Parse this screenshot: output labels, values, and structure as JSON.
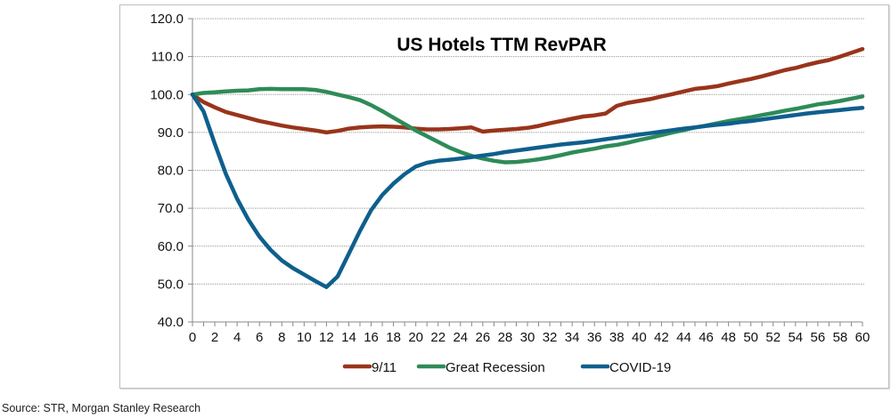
{
  "chart_data": {
    "type": "line",
    "title": "US Hotels TTM RevPAR",
    "xlabel": "",
    "ylabel": "",
    "ylim": [
      40,
      120
    ],
    "xlim": [
      0,
      60
    ],
    "y_ticks": [
      "40.0",
      "50.0",
      "60.0",
      "70.0",
      "80.0",
      "90.0",
      "100.0",
      "110.0",
      "120.0"
    ],
    "y_tick_values": [
      40,
      50,
      60,
      70,
      80,
      90,
      100,
      110,
      120
    ],
    "x_ticks": [
      "0",
      "2",
      "4",
      "6",
      "8",
      "10",
      "12",
      "14",
      "16",
      "18",
      "20",
      "22",
      "24",
      "26",
      "28",
      "30",
      "32",
      "34",
      "36",
      "38",
      "40",
      "42",
      "44",
      "46",
      "48",
      "50",
      "52",
      "54",
      "56",
      "58",
      "60"
    ],
    "grid": true,
    "legend_position": "bottom",
    "x": [
      0,
      1,
      2,
      3,
      4,
      5,
      6,
      7,
      8,
      9,
      10,
      11,
      12,
      13,
      14,
      15,
      16,
      17,
      18,
      19,
      20,
      21,
      22,
      23,
      24,
      25,
      26,
      27,
      28,
      29,
      30,
      31,
      32,
      33,
      34,
      35,
      36,
      37,
      38,
      39,
      40,
      41,
      42,
      43,
      44,
      45,
      46,
      47,
      48,
      49,
      50,
      51,
      52,
      53,
      54,
      55,
      56,
      57,
      58,
      59,
      60
    ],
    "series": [
      {
        "name": "9/11",
        "color": "#99341b",
        "values": [
          100.0,
          98.0,
          96.6,
          95.4,
          94.6,
          93.8,
          93.0,
          92.4,
          91.8,
          91.3,
          90.9,
          90.5,
          90.0,
          90.4,
          91.0,
          91.3,
          91.5,
          91.6,
          91.5,
          91.3,
          91.0,
          90.8,
          90.8,
          90.9,
          91.1,
          91.3,
          90.2,
          90.5,
          90.7,
          90.9,
          91.2,
          91.7,
          92.4,
          93.0,
          93.6,
          94.2,
          94.5,
          95.0,
          97.0,
          97.8,
          98.3,
          98.8,
          99.5,
          100.1,
          100.8,
          101.5,
          101.8,
          102.2,
          102.9,
          103.5,
          104.1,
          104.8,
          105.6,
          106.4,
          107.0,
          107.8,
          108.5,
          109.1,
          110.0,
          111.0,
          112.0
        ]
      },
      {
        "name": "Great Recession",
        "color": "#2e8b57",
        "values": [
          100.0,
          100.4,
          100.6,
          100.8,
          101.0,
          101.1,
          101.4,
          101.5,
          101.4,
          101.4,
          101.4,
          101.2,
          100.7,
          100.0,
          99.3,
          98.5,
          97.2,
          95.6,
          93.9,
          92.2,
          90.5,
          89.0,
          87.5,
          86.0,
          84.8,
          83.8,
          83.1,
          82.5,
          82.1,
          82.2,
          82.5,
          82.9,
          83.4,
          84.0,
          84.7,
          85.2,
          85.7,
          86.3,
          86.7,
          87.3,
          88.0,
          88.6,
          89.3,
          90.0,
          90.6,
          91.3,
          91.8,
          92.4,
          93.0,
          93.5,
          94.0,
          94.6,
          95.1,
          95.7,
          96.2,
          96.8,
          97.4,
          97.8,
          98.3,
          98.9,
          99.5
        ]
      },
      {
        "name": "COVID-19",
        "color": "#0e5f8d",
        "values": [
          100.0,
          95.5,
          87.0,
          79.0,
          72.5,
          67.0,
          62.5,
          59.0,
          56.2,
          54.2,
          52.5,
          50.8,
          49.2,
          52.0,
          58.0,
          64.0,
          69.5,
          73.5,
          76.5,
          79.0,
          81.0,
          82.0,
          82.5,
          82.8,
          83.1,
          83.5,
          83.9,
          84.3,
          84.8,
          85.2,
          85.6,
          86.0,
          86.4,
          86.8,
          87.1,
          87.4,
          87.8,
          88.2,
          88.6,
          89.0,
          89.4,
          89.8,
          90.2,
          90.6,
          91.0,
          91.3,
          91.7,
          92.0,
          92.3,
          92.7,
          93.0,
          93.4,
          93.8,
          94.2,
          94.6,
          95.0,
          95.3,
          95.6,
          95.9,
          96.2,
          96.5
        ]
      }
    ]
  },
  "footer": {
    "source": "Source: STR, Morgan Stanley Research"
  }
}
